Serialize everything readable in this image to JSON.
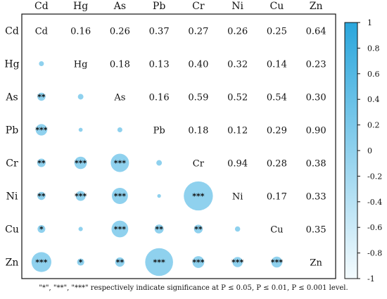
{
  "chart_data": {
    "type": "heatmap",
    "variables": [
      "Cd",
      "Hg",
      "As",
      "Pb",
      "Cr",
      "Ni",
      "Cu",
      "Zn"
    ],
    "cells": [
      [
        null,
        0.16,
        0.26,
        0.37,
        0.27,
        0.26,
        0.25,
        0.64
      ],
      [
        0.16,
        null,
        0.18,
        0.13,
        0.4,
        0.32,
        0.14,
        0.23
      ],
      [
        0.26,
        0.18,
        null,
        0.16,
        0.59,
        0.52,
        0.54,
        0.3
      ],
      [
        0.37,
        0.13,
        0.16,
        null,
        0.18,
        0.12,
        0.29,
        0.9
      ],
      [
        0.27,
        0.4,
        0.59,
        0.18,
        null,
        0.94,
        0.28,
        0.38
      ],
      [
        0.26,
        0.32,
        0.52,
        0.12,
        0.94,
        null,
        0.17,
        0.33
      ],
      [
        0.25,
        0.14,
        0.54,
        0.29,
        0.28,
        0.17,
        null,
        0.35
      ],
      [
        0.64,
        0.23,
        0.3,
        0.9,
        0.38,
        0.33,
        0.35,
        null
      ]
    ],
    "significance": [
      [
        "",
        "",
        "",
        "",
        "",
        "",
        "",
        ""
      ],
      [
        "",
        "",
        "",
        "",
        "",
        "",
        "",
        ""
      ],
      [
        "**",
        "",
        "",
        "",
        "",
        "",
        "",
        ""
      ],
      [
        "***",
        "",
        "",
        "",
        "",
        "",
        "",
        ""
      ],
      [
        "**",
        "***",
        "***",
        "",
        "",
        "",
        "",
        ""
      ],
      [
        "**",
        "***",
        "***",
        "",
        "***",
        "",
        "",
        ""
      ],
      [
        "*",
        "",
        "***",
        "**",
        "**",
        "",
        "",
        ""
      ],
      [
        "***",
        "*",
        "**",
        "***",
        "***",
        "***",
        "***",
        ""
      ]
    ],
    "lower_triangle": "circles",
    "upper_triangle": "numbers",
    "colorbar": {
      "min": -1,
      "max": 1,
      "ticks": [
        "1",
        "0.8",
        "0.6",
        "0.4",
        "0.2",
        "0",
        "-0.2",
        "-0.4",
        "-0.6",
        "-0.8",
        "-1"
      ],
      "low_color": "#f4fbfe",
      "high_color": "#2aa6dc",
      "position": "right"
    },
    "circle_color": "#8fd1ee",
    "footnote": "\"*\", \"**\", \"***\" respectively indicate significance at P ≤ 0.05, P ≤ 0.01, P ≤ 0.001 level."
  }
}
